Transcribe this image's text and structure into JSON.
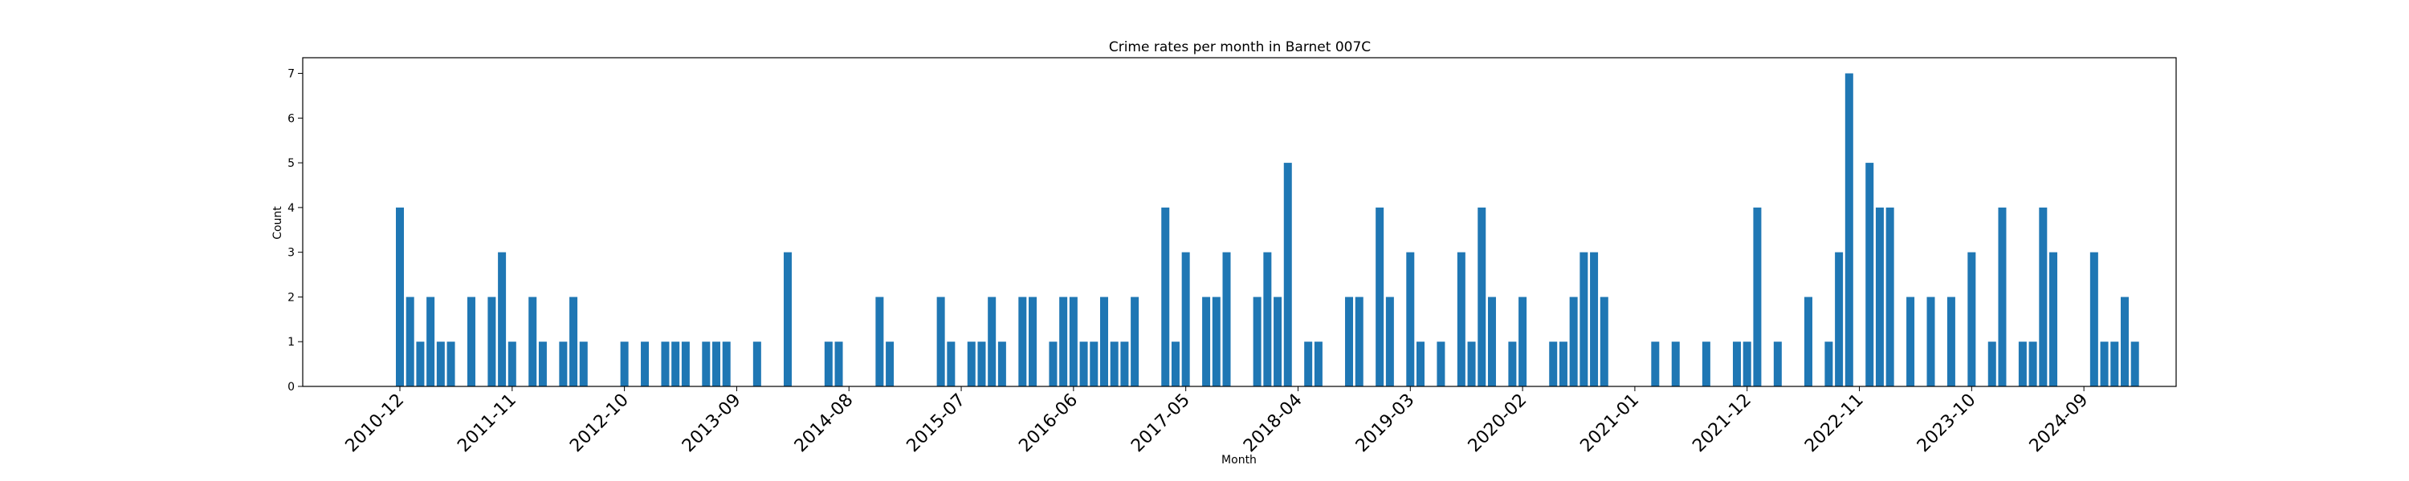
{
  "chart_data": {
    "type": "bar",
    "title": "Crime rates per month in Barnet 007C",
    "xlabel": "Month",
    "ylabel": "Count",
    "ylim": [
      0,
      7.35
    ],
    "yticks": [
      0,
      1,
      2,
      3,
      4,
      5,
      6,
      7
    ],
    "color": "#1f77b4",
    "x_tick_labels": [
      "2010-12",
      "2011-11",
      "2012-10",
      "2013-09",
      "2014-08",
      "2015-07",
      "2016-06",
      "2017-05",
      "2018-04",
      "2019-03",
      "2020-02",
      "2021-01",
      "2021-12",
      "2022-11",
      "2023-10",
      "2024-09"
    ],
    "grid": false,
    "legend": "none",
    "points": [
      {
        "x": "2010-12",
        "y": 4
      },
      {
        "x": "2011-01",
        "y": 2
      },
      {
        "x": "2011-02",
        "y": 1
      },
      {
        "x": "2011-03",
        "y": 2
      },
      {
        "x": "2011-04",
        "y": 1
      },
      {
        "x": "2011-05",
        "y": 1
      },
      {
        "x": "2011-07",
        "y": 2
      },
      {
        "x": "2011-09",
        "y": 2
      },
      {
        "x": "2011-10",
        "y": 3
      },
      {
        "x": "2011-11",
        "y": 1
      },
      {
        "x": "2012-01",
        "y": 2
      },
      {
        "x": "2012-02",
        "y": 1
      },
      {
        "x": "2012-04",
        "y": 1
      },
      {
        "x": "2012-05",
        "y": 2
      },
      {
        "x": "2012-06",
        "y": 1
      },
      {
        "x": "2012-10",
        "y": 1
      },
      {
        "x": "2012-12",
        "y": 1
      },
      {
        "x": "2013-02",
        "y": 1
      },
      {
        "x": "2013-03",
        "y": 1
      },
      {
        "x": "2013-04",
        "y": 1
      },
      {
        "x": "2013-06",
        "y": 1
      },
      {
        "x": "2013-07",
        "y": 1
      },
      {
        "x": "2013-08",
        "y": 1
      },
      {
        "x": "2013-11",
        "y": 1
      },
      {
        "x": "2014-02",
        "y": 3
      },
      {
        "x": "2014-06",
        "y": 1
      },
      {
        "x": "2014-07",
        "y": 1
      },
      {
        "x": "2014-11",
        "y": 2
      },
      {
        "x": "2014-12",
        "y": 1
      },
      {
        "x": "2015-05",
        "y": 2
      },
      {
        "x": "2015-06",
        "y": 1
      },
      {
        "x": "2015-08",
        "y": 1
      },
      {
        "x": "2015-09",
        "y": 1
      },
      {
        "x": "2015-10",
        "y": 2
      },
      {
        "x": "2015-11",
        "y": 1
      },
      {
        "x": "2016-01",
        "y": 2
      },
      {
        "x": "2016-02",
        "y": 2
      },
      {
        "x": "2016-04",
        "y": 1
      },
      {
        "x": "2016-05",
        "y": 2
      },
      {
        "x": "2016-06",
        "y": 2
      },
      {
        "x": "2016-07",
        "y": 1
      },
      {
        "x": "2016-08",
        "y": 1
      },
      {
        "x": "2016-09",
        "y": 2
      },
      {
        "x": "2016-10",
        "y": 1
      },
      {
        "x": "2016-11",
        "y": 1
      },
      {
        "x": "2016-12",
        "y": 2
      },
      {
        "x": "2017-03",
        "y": 4
      },
      {
        "x": "2017-04",
        "y": 1
      },
      {
        "x": "2017-05",
        "y": 3
      },
      {
        "x": "2017-07",
        "y": 2
      },
      {
        "x": "2017-08",
        "y": 2
      },
      {
        "x": "2017-09",
        "y": 3
      },
      {
        "x": "2017-12",
        "y": 2
      },
      {
        "x": "2018-01",
        "y": 3
      },
      {
        "x": "2018-02",
        "y": 2
      },
      {
        "x": "2018-03",
        "y": 5
      },
      {
        "x": "2018-05",
        "y": 1
      },
      {
        "x": "2018-06",
        "y": 1
      },
      {
        "x": "2018-09",
        "y": 2
      },
      {
        "x": "2018-10",
        "y": 2
      },
      {
        "x": "2018-12",
        "y": 4
      },
      {
        "x": "2019-01",
        "y": 2
      },
      {
        "x": "2019-03",
        "y": 3
      },
      {
        "x": "2019-04",
        "y": 1
      },
      {
        "x": "2019-06",
        "y": 1
      },
      {
        "x": "2019-08",
        "y": 3
      },
      {
        "x": "2019-09",
        "y": 1
      },
      {
        "x": "2019-10",
        "y": 4
      },
      {
        "x": "2019-11",
        "y": 2
      },
      {
        "x": "2020-01",
        "y": 1
      },
      {
        "x": "2020-02",
        "y": 2
      },
      {
        "x": "2020-05",
        "y": 1
      },
      {
        "x": "2020-06",
        "y": 1
      },
      {
        "x": "2020-07",
        "y": 2
      },
      {
        "x": "2020-08",
        "y": 3
      },
      {
        "x": "2020-09",
        "y": 3
      },
      {
        "x": "2020-10",
        "y": 2
      },
      {
        "x": "2021-03",
        "y": 1
      },
      {
        "x": "2021-05",
        "y": 1
      },
      {
        "x": "2021-08",
        "y": 1
      },
      {
        "x": "2021-11",
        "y": 1
      },
      {
        "x": "2021-12",
        "y": 1
      },
      {
        "x": "2022-01",
        "y": 4
      },
      {
        "x": "2022-03",
        "y": 1
      },
      {
        "x": "2022-06",
        "y": 2
      },
      {
        "x": "2022-08",
        "y": 1
      },
      {
        "x": "2022-09",
        "y": 3
      },
      {
        "x": "2022-10",
        "y": 7
      },
      {
        "x": "2022-12",
        "y": 5
      },
      {
        "x": "2023-01",
        "y": 4
      },
      {
        "x": "2023-02",
        "y": 4
      },
      {
        "x": "2023-04",
        "y": 2
      },
      {
        "x": "2023-06",
        "y": 2
      },
      {
        "x": "2023-08",
        "y": 2
      },
      {
        "x": "2023-10",
        "y": 3
      },
      {
        "x": "2023-12",
        "y": 1
      },
      {
        "x": "2024-01",
        "y": 4
      },
      {
        "x": "2024-03",
        "y": 1
      },
      {
        "x": "2024-04",
        "y": 1
      },
      {
        "x": "2024-05",
        "y": 4
      },
      {
        "x": "2024-06",
        "y": 3
      },
      {
        "x": "2024-10",
        "y": 3
      },
      {
        "x": "2024-11",
        "y": 1
      },
      {
        "x": "2024-12",
        "y": 1
      },
      {
        "x": "2025-01",
        "y": 2
      },
      {
        "x": "2025-02",
        "y": 1
      }
    ]
  }
}
